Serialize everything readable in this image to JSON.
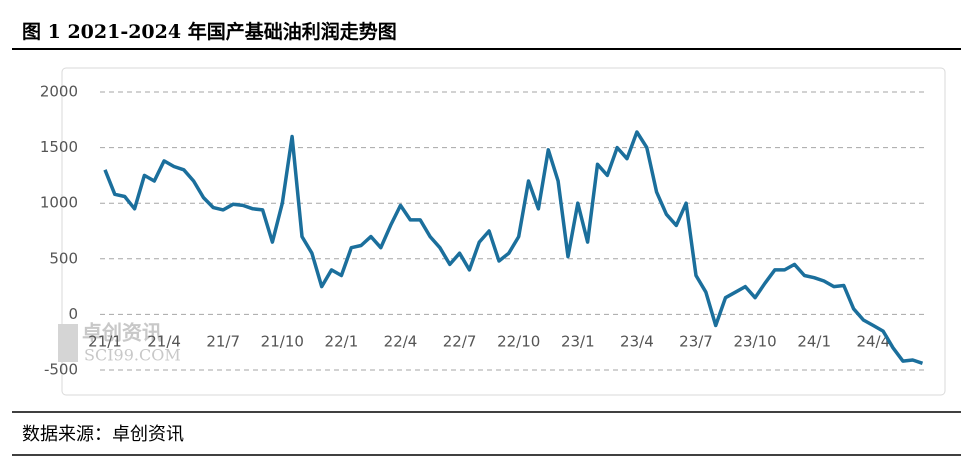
{
  "chart_data": {
    "type": "line",
    "title": "图 1 2021-2024 年国产基础油利润走势图",
    "source": "数据来源：卓创资讯",
    "watermark": [
      "卓创资讯",
      "SCI99.COM"
    ],
    "categories": [
      "21/1",
      null,
      null,
      null,
      null,
      null,
      "21/4",
      null,
      null,
      null,
      null,
      null,
      "21/7",
      null,
      null,
      null,
      null,
      null,
      "21/10",
      null,
      null,
      null,
      null,
      null,
      "22/1",
      null,
      null,
      null,
      null,
      null,
      "22/4",
      null,
      null,
      null,
      null,
      null,
      "22/7",
      null,
      null,
      null,
      null,
      null,
      "22/10",
      null,
      null,
      null,
      null,
      null,
      "23/1",
      null,
      null,
      null,
      null,
      null,
      "23/4",
      null,
      null,
      null,
      null,
      null,
      "23/7",
      null,
      null,
      null,
      null,
      null,
      "23/10",
      null,
      null,
      null,
      null,
      null,
      "24/1",
      null,
      null,
      null,
      null,
      null,
      "24/4",
      null,
      null,
      null,
      null,
      null
    ],
    "values": [
      1300,
      1080,
      1060,
      950,
      1250,
      1200,
      1380,
      1330,
      1300,
      1200,
      1050,
      960,
      940,
      990,
      980,
      950,
      940,
      650,
      1000,
      1600,
      700,
      550,
      250,
      400,
      350,
      600,
      620,
      700,
      600,
      800,
      980,
      850,
      850,
      700,
      600,
      450,
      550,
      400,
      650,
      750,
      480,
      550,
      700,
      1200,
      950,
      1480,
      1200,
      520,
      1000,
      650,
      1350,
      1250,
      1500,
      1400,
      1640,
      1500,
      1100,
      900,
      800,
      1000,
      350,
      200,
      -100,
      150,
      200,
      250,
      150,
      280,
      400,
      400,
      450,
      350,
      330,
      300,
      250,
      260,
      50,
      -50,
      -100,
      -150,
      -300,
      -420,
      -410,
      -440
    ],
    "color": "#1b6f9c",
    "ylim": [
      -500,
      2000
    ],
    "yticks": [
      -500,
      0,
      500,
      1000,
      1500,
      2000
    ],
    "grid": true
  }
}
